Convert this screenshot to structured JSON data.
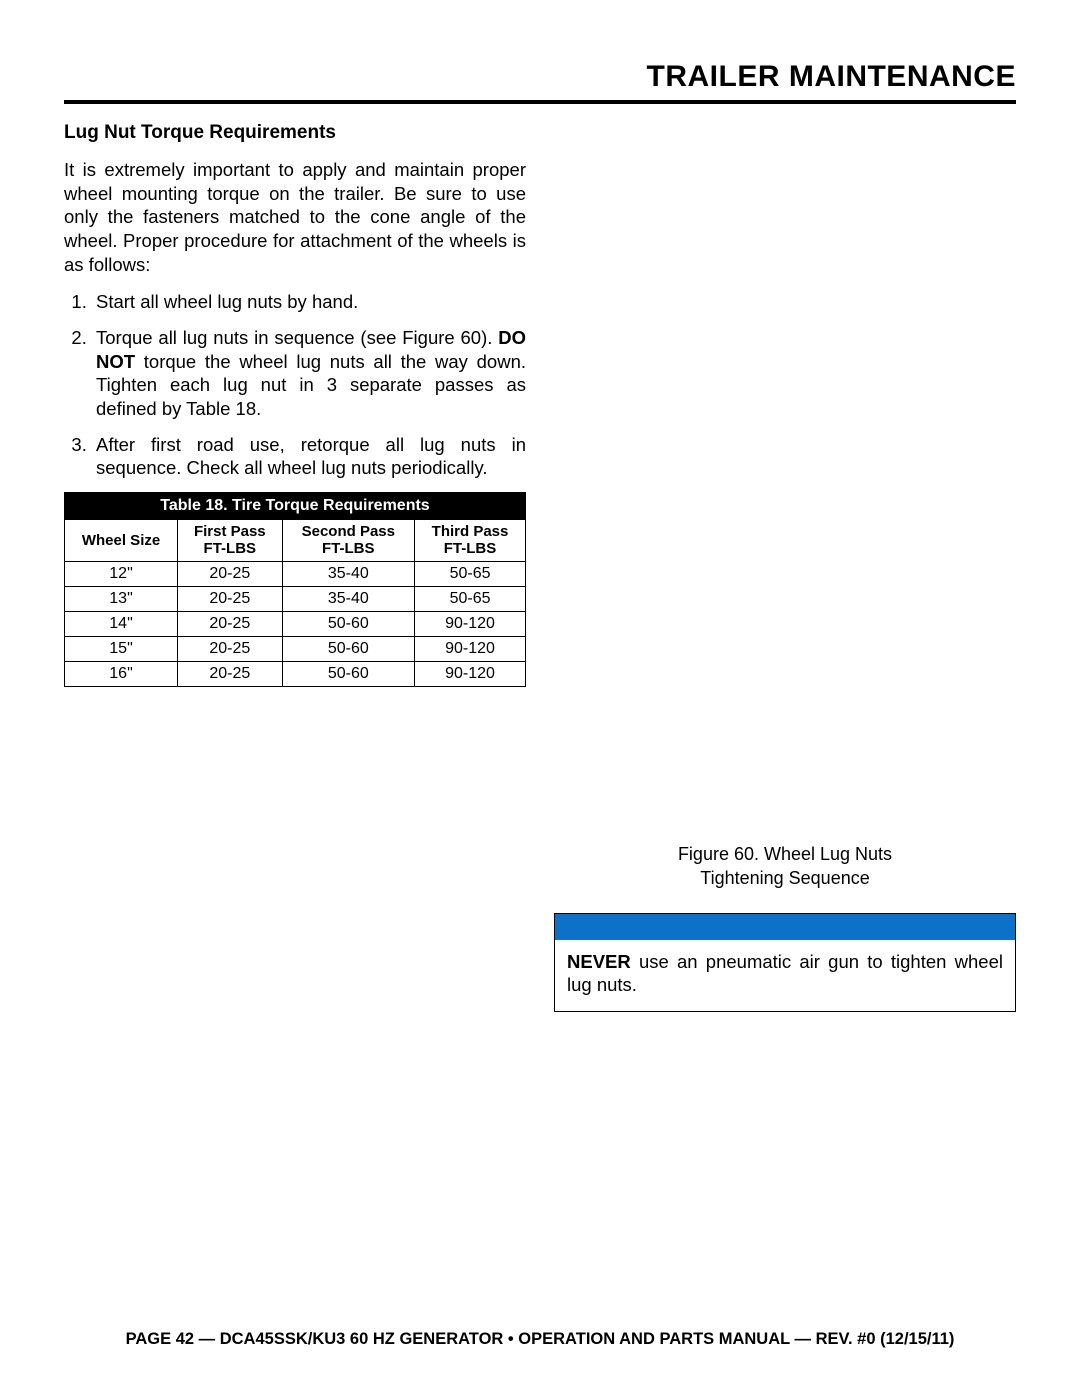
{
  "header": {
    "title": "TRAILER MAINTENANCE"
  },
  "left": {
    "subhead": "Lug Nut Torque Requirements",
    "intro": "It is extremely important to apply and maintain proper wheel mounting torque on the trailer. Be sure to use only the fasteners matched to the cone angle of the wheel. Proper procedure for attachment of the wheels is as follows:",
    "steps": {
      "s1": "Start all wheel lug nuts by hand.",
      "s2_a": "Torque all lug nuts in sequence (see Figure 60). ",
      "s2_b": "DO NOT",
      "s2_c": " torque the wheel lug nuts all the way down. Tighten each lug nut in 3 separate passes as defined by Table 18.",
      "s3": "After first road use, retorque all lug nuts in sequence. Check all wheel lug nuts periodically."
    },
    "table": {
      "title": "Table 18. Tire Torque Requirements",
      "headers": {
        "c0": "Wheel Size",
        "c1a": "First Pass",
        "c1b": "FT-LBS",
        "c2a": "Second Pass",
        "c2b": "FT-LBS",
        "c3a": "Third Pass",
        "c3b": "FT-LBS"
      },
      "rows": {
        "r0": {
          "size": "12\"",
          "p1": "20-25",
          "p2": "35-40",
          "p3": "50-65"
        },
        "r1": {
          "size": "13\"",
          "p1": "20-25",
          "p2": "35-40",
          "p3": "50-65"
        },
        "r2": {
          "size": "14\"",
          "p1": "20-25",
          "p2": "50-60",
          "p3": "90-120"
        },
        "r3": {
          "size": "15\"",
          "p1": "20-25",
          "p2": "50-60",
          "p3": "90-120"
        },
        "r4": {
          "size": "16\"",
          "p1": "20-25",
          "p2": "50-60",
          "p3": "90-120"
        }
      }
    }
  },
  "right": {
    "figure_caption_l1": "Figure 60. Wheel Lug Nuts",
    "figure_caption_l2": "Tightening Sequence",
    "notice": {
      "bar_color": "#0d72c7",
      "never": "NEVER",
      "text_rest": " use an pneumatic air gun to tighten wheel lug nuts."
    }
  },
  "footer": "PAGE 42 — DCA45SSK/KU3 60 HZ GENERATOR • OPERATION AND PARTS MANUAL — REV. #0 (12/15/11)"
}
